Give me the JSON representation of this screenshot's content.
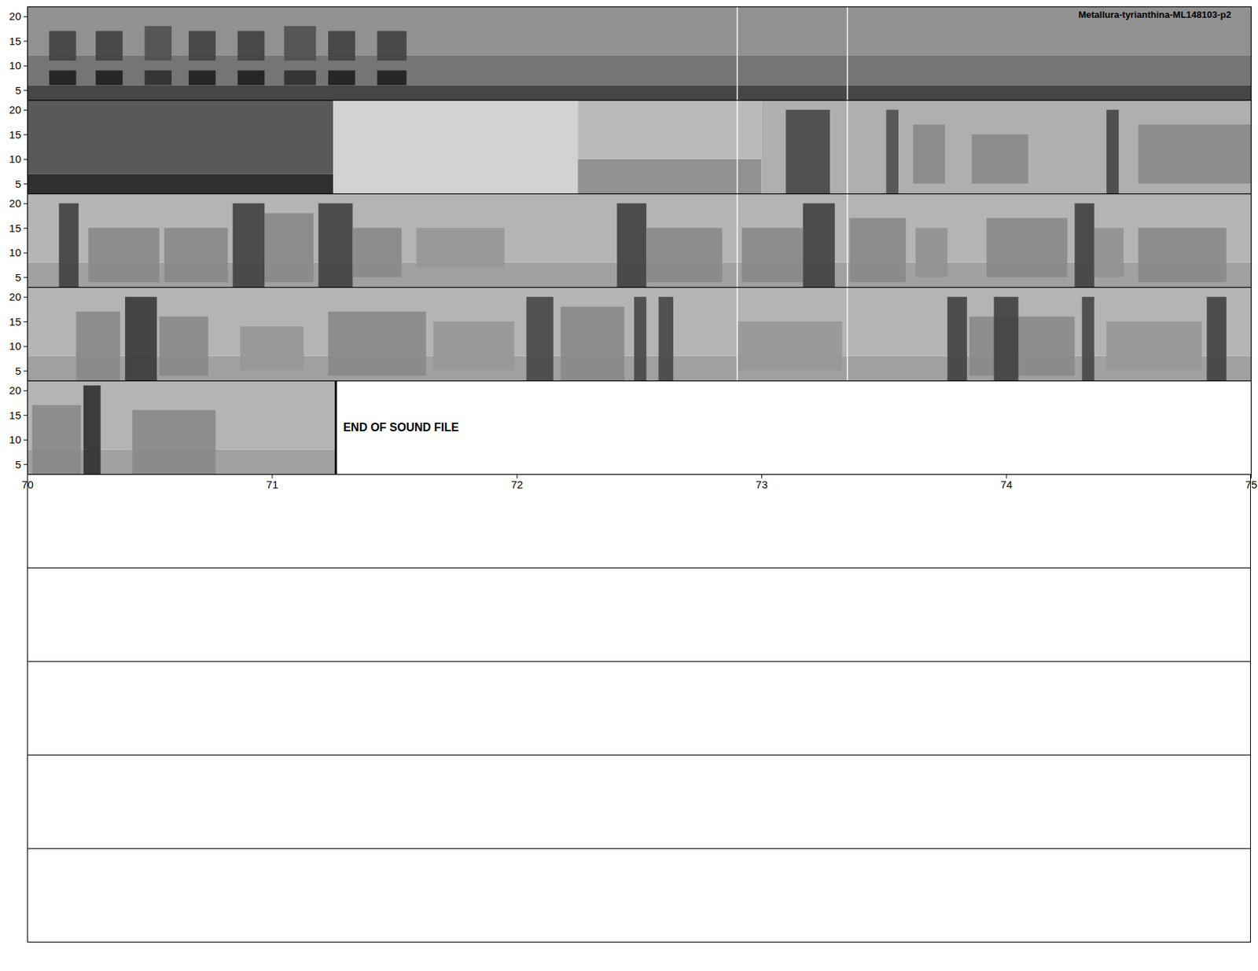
{
  "chart_data": {
    "type": "spectrogram",
    "title": "Metallura-tyrianthina-ML148103-p2",
    "ylim": [
      3,
      22
    ],
    "yticks": [
      5,
      10,
      15,
      20
    ],
    "empty_rows": 5,
    "rows": [
      {
        "xlim": [
          50,
          55
        ],
        "markers": [
          52.9,
          53.35
        ],
        "background": [
          {
            "t0": 50,
            "t1": 55,
            "f0": 3,
            "f1": 6,
            "level": 0.78
          },
          {
            "t0": 50,
            "t1": 55,
            "f0": 6,
            "f1": 12,
            "level": 0.62
          },
          {
            "t0": 50,
            "t1": 55,
            "f0": 12,
            "f1": 22,
            "level": 0.52
          }
        ],
        "events": [
          {
            "t0": 50.09,
            "t1": 50.2,
            "f0": 6,
            "f1": 9,
            "level": 0.9
          },
          {
            "t0": 50.09,
            "t1": 50.2,
            "f0": 11,
            "f1": 17,
            "level": 0.8
          },
          {
            "t0": 50.28,
            "t1": 50.39,
            "f0": 6,
            "f1": 9,
            "level": 0.9
          },
          {
            "t0": 50.28,
            "t1": 50.39,
            "f0": 11,
            "f1": 17,
            "level": 0.8
          },
          {
            "t0": 50.48,
            "t1": 50.59,
            "f0": 6,
            "f1": 9,
            "level": 0.85
          },
          {
            "t0": 50.48,
            "t1": 50.59,
            "f0": 11,
            "f1": 18,
            "level": 0.75
          },
          {
            "t0": 50.66,
            "t1": 50.77,
            "f0": 6,
            "f1": 9,
            "level": 0.9
          },
          {
            "t0": 50.66,
            "t1": 50.77,
            "f0": 11,
            "f1": 17,
            "level": 0.8
          },
          {
            "t0": 50.86,
            "t1": 50.97,
            "f0": 6,
            "f1": 9,
            "level": 0.9
          },
          {
            "t0": 50.86,
            "t1": 50.97,
            "f0": 11,
            "f1": 17,
            "level": 0.8
          },
          {
            "t0": 51.05,
            "t1": 51.18,
            "f0": 6,
            "f1": 9,
            "level": 0.85
          },
          {
            "t0": 51.05,
            "t1": 51.18,
            "f0": 11,
            "f1": 18,
            "level": 0.75
          },
          {
            "t0": 51.23,
            "t1": 51.34,
            "f0": 6,
            "f1": 9,
            "level": 0.9
          },
          {
            "t0": 51.23,
            "t1": 51.34,
            "f0": 11,
            "f1": 17,
            "level": 0.8
          },
          {
            "t0": 51.43,
            "t1": 51.55,
            "f0": 6,
            "f1": 9,
            "level": 0.9
          },
          {
            "t0": 51.43,
            "t1": 51.55,
            "f0": 11,
            "f1": 17,
            "level": 0.8
          }
        ]
      },
      {
        "xlim": [
          55,
          60
        ],
        "markers": [
          57.9,
          58.35
        ],
        "background": [
          {
            "t0": 55,
            "t1": 56.25,
            "f0": 3,
            "f1": 7,
            "level": 0.85
          },
          {
            "t0": 55,
            "t1": 56.25,
            "f0": 7,
            "f1": 22,
            "level": 0.72
          },
          {
            "t0": 56.25,
            "t1": 57.25,
            "f0": 3,
            "f1": 22,
            "level": 0.28
          },
          {
            "t0": 57.25,
            "t1": 58,
            "f0": 3,
            "f1": 10,
            "level": 0.52
          },
          {
            "t0": 57.25,
            "t1": 58,
            "f0": 10,
            "f1": 22,
            "level": 0.38
          },
          {
            "t0": 58,
            "t1": 60,
            "f0": 3,
            "f1": 22,
            "level": 0.42
          }
        ],
        "events": [
          {
            "t0": 58.1,
            "t1": 58.28,
            "f0": 3,
            "f1": 20,
            "level": 0.78
          },
          {
            "t0": 58.51,
            "t1": 58.56,
            "f0": 3,
            "f1": 20,
            "level": 0.75
          },
          {
            "t0": 58.62,
            "t1": 58.75,
            "f0": 5,
            "f1": 17,
            "level": 0.55
          },
          {
            "t0": 58.86,
            "t1": 59.09,
            "f0": 5,
            "f1": 15,
            "level": 0.55
          },
          {
            "t0": 59.41,
            "t1": 59.46,
            "f0": 3,
            "f1": 20,
            "level": 0.78
          },
          {
            "t0": 59.54,
            "t1": 60,
            "f0": 5,
            "f1": 17,
            "level": 0.55
          }
        ]
      },
      {
        "xlim": [
          60,
          65
        ],
        "markers": [
          62.9,
          63.35
        ],
        "background": [
          {
            "t0": 60,
            "t1": 65,
            "f0": 3,
            "f1": 8,
            "level": 0.47
          },
          {
            "t0": 60,
            "t1": 65,
            "f0": 8,
            "f1": 22,
            "level": 0.4
          }
        ],
        "events": [
          {
            "t0": 60.13,
            "t1": 60.21,
            "f0": 3,
            "f1": 20,
            "level": 0.8
          },
          {
            "t0": 60.25,
            "t1": 60.54,
            "f0": 4,
            "f1": 15,
            "level": 0.55
          },
          {
            "t0": 60.56,
            "t1": 60.82,
            "f0": 4,
            "f1": 15,
            "level": 0.55
          },
          {
            "t0": 60.84,
            "t1": 60.97,
            "f0": 3,
            "f1": 20,
            "level": 0.8
          },
          {
            "t0": 60.97,
            "t1": 61.17,
            "f0": 4,
            "f1": 18,
            "level": 0.55
          },
          {
            "t0": 61.19,
            "t1": 61.33,
            "f0": 3,
            "f1": 20,
            "level": 0.8
          },
          {
            "t0": 61.33,
            "t1": 61.53,
            "f0": 5,
            "f1": 15,
            "level": 0.55
          },
          {
            "t0": 61.59,
            "t1": 61.95,
            "f0": 7,
            "f1": 15,
            "level": 0.5
          },
          {
            "t0": 62.41,
            "t1": 62.53,
            "f0": 3,
            "f1": 20,
            "level": 0.8
          },
          {
            "t0": 62.53,
            "t1": 62.84,
            "f0": 4,
            "f1": 15,
            "level": 0.55
          },
          {
            "t0": 62.92,
            "t1": 63.17,
            "f0": 4,
            "f1": 15,
            "level": 0.55
          },
          {
            "t0": 63.17,
            "t1": 63.3,
            "f0": 3,
            "f1": 20,
            "level": 0.8
          },
          {
            "t0": 63.36,
            "t1": 63.59,
            "f0": 4,
            "f1": 17,
            "level": 0.55
          },
          {
            "t0": 63.63,
            "t1": 63.76,
            "f0": 5,
            "f1": 15,
            "level": 0.52
          },
          {
            "t0": 63.92,
            "t1": 64.25,
            "f0": 5,
            "f1": 17,
            "level": 0.55
          },
          {
            "t0": 64.28,
            "t1": 64.36,
            "f0": 3,
            "f1": 20,
            "level": 0.8
          },
          {
            "t0": 64.36,
            "t1": 64.48,
            "f0": 5,
            "f1": 15,
            "level": 0.52
          },
          {
            "t0": 64.54,
            "t1": 64.9,
            "f0": 4,
            "f1": 15,
            "level": 0.55
          }
        ]
      },
      {
        "xlim": [
          65,
          70
        ],
        "markers": [
          67.9,
          68.35
        ],
        "background": [
          {
            "t0": 65,
            "t1": 70,
            "f0": 3,
            "f1": 8,
            "level": 0.47
          },
          {
            "t0": 65,
            "t1": 70,
            "f0": 8,
            "f1": 22,
            "level": 0.4
          }
        ],
        "events": [
          {
            "t0": 65.2,
            "t1": 65.38,
            "f0": 3,
            "f1": 17,
            "level": 0.55
          },
          {
            "t0": 65.4,
            "t1": 65.53,
            "f0": 3,
            "f1": 20,
            "level": 0.82
          },
          {
            "t0": 65.54,
            "t1": 65.74,
            "f0": 4,
            "f1": 16,
            "level": 0.55
          },
          {
            "t0": 65.87,
            "t1": 66.13,
            "f0": 5,
            "f1": 14,
            "level": 0.5
          },
          {
            "t0": 66.23,
            "t1": 66.63,
            "f0": 4,
            "f1": 17,
            "level": 0.55
          },
          {
            "t0": 66.66,
            "t1": 66.99,
            "f0": 5,
            "f1": 15,
            "level": 0.5
          },
          {
            "t0": 67.04,
            "t1": 67.15,
            "f0": 3,
            "f1": 20,
            "level": 0.78
          },
          {
            "t0": 67.18,
            "t1": 67.44,
            "f0": 3,
            "f1": 18,
            "level": 0.55
          },
          {
            "t0": 67.48,
            "t1": 67.53,
            "f0": 3,
            "f1": 20,
            "level": 0.78
          },
          {
            "t0": 67.58,
            "t1": 67.64,
            "f0": 3,
            "f1": 20,
            "level": 0.78
          },
          {
            "t0": 67.9,
            "t1": 68.33,
            "f0": 5,
            "f1": 15,
            "level": 0.5
          },
          {
            "t0": 68.76,
            "t1": 68.84,
            "f0": 3,
            "f1": 20,
            "level": 0.8
          },
          {
            "t0": 68.85,
            "t1": 69.28,
            "f0": 4,
            "f1": 16,
            "level": 0.55
          },
          {
            "t0": 68.95,
            "t1": 69.05,
            "f0": 3,
            "f1": 20,
            "level": 0.8
          },
          {
            "t0": 69.31,
            "t1": 69.36,
            "f0": 3,
            "f1": 20,
            "level": 0.78
          },
          {
            "t0": 69.41,
            "t1": 69.8,
            "f0": 5,
            "f1": 15,
            "level": 0.5
          },
          {
            "t0": 69.82,
            "t1": 69.9,
            "f0": 3,
            "f1": 20,
            "level": 0.8
          }
        ]
      },
      {
        "xlim": [
          70,
          75
        ],
        "xticks": [
          70,
          71,
          72,
          73,
          74,
          75
        ],
        "end": 71.26,
        "annotation": {
          "text": "END OF SOUND FILE",
          "x": 71.29,
          "y": 12.5
        },
        "background": [
          {
            "t0": 70,
            "t1": 71.26,
            "f0": 3,
            "f1": 8,
            "level": 0.47
          },
          {
            "t0": 70,
            "t1": 71.26,
            "f0": 8,
            "f1": 22,
            "level": 0.4
          }
        ],
        "events": [
          {
            "t0": 70.02,
            "t1": 70.22,
            "f0": 3,
            "f1": 17,
            "level": 0.55
          },
          {
            "t0": 70.23,
            "t1": 70.3,
            "f0": 3,
            "f1": 21,
            "level": 0.85
          },
          {
            "t0": 70.43,
            "t1": 70.77,
            "f0": 3,
            "f1": 16,
            "level": 0.55
          }
        ]
      }
    ]
  }
}
